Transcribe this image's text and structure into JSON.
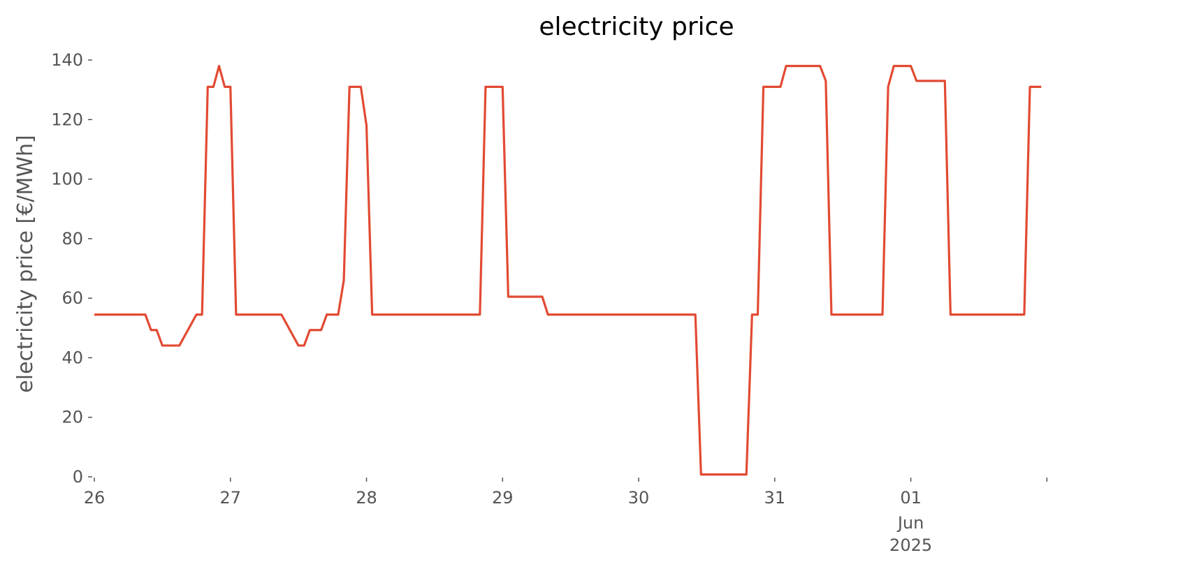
{
  "chart_data": {
    "type": "line",
    "title": "electricity price",
    "xlabel": "",
    "ylabel": "electricity price [€/MWh]",
    "x_unit": "date",
    "xlim": [
      "2025-05-26 00:00",
      "2025-06-02 23:00"
    ],
    "ylim": [
      0,
      140
    ],
    "grid": false,
    "legend": "none",
    "colors": {
      "line": "#E24A33",
      "text": "#555555",
      "title": "#000000"
    },
    "yticks": [
      {
        "value": 0,
        "label": "0"
      },
      {
        "value": 20,
        "label": "20"
      },
      {
        "value": 40,
        "label": "40"
      },
      {
        "value": 60,
        "label": "60"
      },
      {
        "value": 80,
        "label": "80"
      },
      {
        "value": 100,
        "label": "100"
      },
      {
        "value": 120,
        "label": "120"
      },
      {
        "value": 140,
        "label": "140"
      }
    ],
    "xticks": [
      {
        "value": "2025-05-26 00:00",
        "label": "26"
      },
      {
        "value": "2025-05-27 00:00",
        "label": "27"
      },
      {
        "value": "2025-05-28 00:00",
        "label": "28"
      },
      {
        "value": "2025-05-29 00:00",
        "label": "29"
      },
      {
        "value": "2025-05-30 00:00",
        "label": "30"
      },
      {
        "value": "2025-05-31 00:00",
        "label": "31"
      },
      {
        "value": "2025-06-01 00:00",
        "label": "01",
        "sub1": "Jun",
        "sub2": "2025"
      },
      {
        "value": "2025-06-02 00:00",
        "label": ""
      }
    ],
    "series": [
      {
        "points": [
          [
            "2025-05-26 00:00",
            54.5
          ],
          [
            "2025-05-26 09:00",
            54.5
          ],
          [
            "2025-05-26 10:00",
            49.3
          ],
          [
            "2025-05-26 11:00",
            49.3
          ],
          [
            "2025-05-26 12:00",
            44.1
          ],
          [
            "2025-05-26 15:00",
            44.1
          ],
          [
            "2025-05-26 18:00",
            54.5
          ],
          [
            "2025-05-26 19:00",
            54.5
          ],
          [
            "2025-05-26 20:00",
            131
          ],
          [
            "2025-05-26 21:00",
            131
          ],
          [
            "2025-05-26 22:00",
            138
          ],
          [
            "2025-05-26 23:00",
            131
          ],
          [
            "2025-05-27 00:00",
            131
          ],
          [
            "2025-05-27 01:00",
            54.5
          ],
          [
            "2025-05-27 09:00",
            54.5
          ],
          [
            "2025-05-27 12:00",
            44.1
          ],
          [
            "2025-05-27 13:00",
            44.1
          ],
          [
            "2025-05-27 14:00",
            49.3
          ],
          [
            "2025-05-27 16:00",
            49.3
          ],
          [
            "2025-05-27 17:00",
            54.5
          ],
          [
            "2025-05-27 19:00",
            54.5
          ],
          [
            "2025-05-27 20:00",
            66
          ],
          [
            "2025-05-27 21:00",
            131
          ],
          [
            "2025-05-27 23:00",
            131
          ],
          [
            "2025-05-28 00:00",
            118
          ],
          [
            "2025-05-28 01:00",
            54.5
          ],
          [
            "2025-05-28 20:00",
            54.5
          ],
          [
            "2025-05-28 21:00",
            131
          ],
          [
            "2025-05-29 00:00",
            131
          ],
          [
            "2025-05-29 01:00",
            60.5
          ],
          [
            "2025-05-29 07:00",
            60.5
          ],
          [
            "2025-05-29 08:00",
            54.5
          ],
          [
            "2025-05-30 10:00",
            54.5
          ],
          [
            "2025-05-30 11:00",
            0.8
          ],
          [
            "2025-05-30 19:00",
            0.8
          ],
          [
            "2025-05-30 20:00",
            54.5
          ],
          [
            "2025-05-30 21:00",
            54.5
          ],
          [
            "2025-05-30 22:00",
            131
          ],
          [
            "2025-05-31 01:00",
            131
          ],
          [
            "2025-05-31 02:00",
            138
          ],
          [
            "2025-05-31 08:00",
            138
          ],
          [
            "2025-05-31 09:00",
            133
          ],
          [
            "2025-05-31 10:00",
            54.5
          ],
          [
            "2025-05-31 19:00",
            54.5
          ],
          [
            "2025-05-31 20:00",
            131
          ],
          [
            "2025-05-31 21:00",
            138
          ],
          [
            "2025-05-31 23:00",
            138
          ],
          [
            "2025-06-01 00:00",
            138
          ],
          [
            "2025-06-01 01:00",
            133
          ],
          [
            "2025-06-01 06:00",
            133
          ],
          [
            "2025-06-01 07:00",
            54.5
          ],
          [
            "2025-06-01 20:00",
            54.5
          ],
          [
            "2025-06-01 21:00",
            131
          ],
          [
            "2025-06-01 23:00",
            131
          ]
        ]
      }
    ]
  }
}
